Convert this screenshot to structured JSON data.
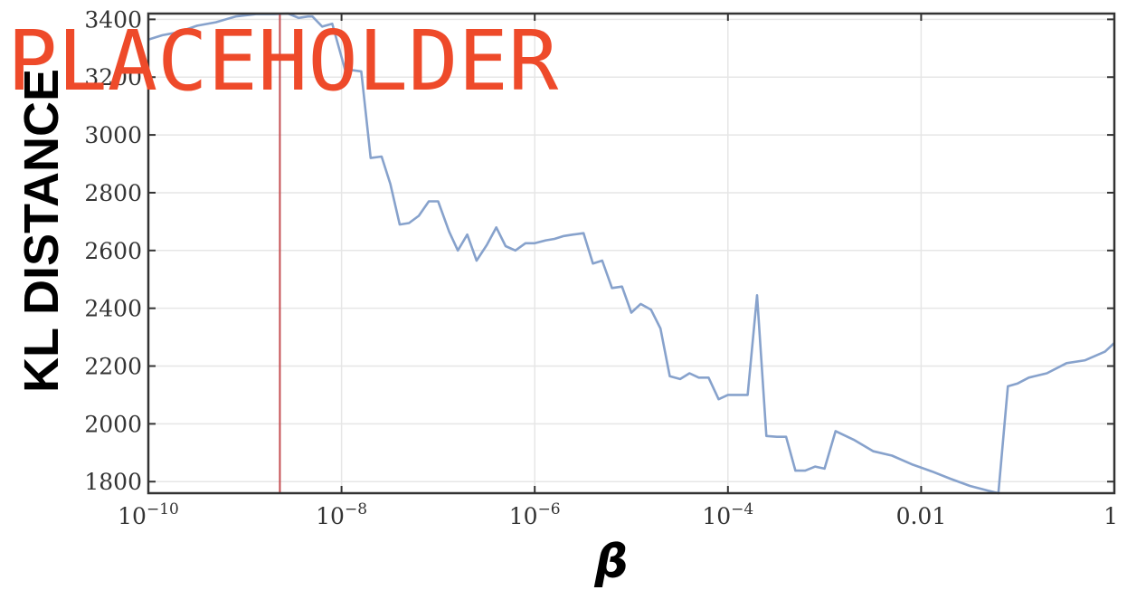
{
  "chart_data": {
    "type": "line",
    "title": "",
    "xlabel": "β",
    "ylabel": "KL DISTANCE",
    "xscale": "log",
    "xlim": [
      1e-10,
      1
    ],
    "ylim": [
      1760,
      3420
    ],
    "grid": true,
    "x_ticks": [
      {
        "value": 1e-10,
        "base": "10",
        "exp": "−10"
      },
      {
        "value": 1e-08,
        "base": "10",
        "exp": "−8"
      },
      {
        "value": 1e-06,
        "base": "10",
        "exp": "−6"
      },
      {
        "value": 0.0001,
        "base": "10",
        "exp": "−4"
      },
      {
        "value": 0.01,
        "base": "0.01",
        "exp": ""
      },
      {
        "value": 1,
        "base": "1",
        "exp": ""
      }
    ],
    "y_ticks": [
      1800,
      2000,
      2200,
      2400,
      2600,
      2800,
      3000,
      3200,
      3400
    ],
    "y_tick_labels": [
      "1800",
      "2000",
      "2200",
      "2400",
      "2600",
      "2800",
      "3000",
      "3200",
      "3400"
    ],
    "vline": {
      "x": 2.3e-09,
      "color": "#c44e52"
    },
    "series": [
      {
        "color": "#87a2cc",
        "x": [
          1e-10,
          1.4e-10,
          2e-10,
          3.2e-10,
          5e-10,
          8e-10,
          1.3e-09,
          2e-09,
          2.8e-09,
          3.6e-09,
          4.5e-09,
          5e-09,
          6.3e-09,
          8e-09,
          1.1e-08,
          1.25e-08,
          1.6e-08,
          2e-08,
          2.6e-08,
          3.2e-08,
          4e-08,
          5e-08,
          6.3e-08,
          8e-08,
          1e-07,
          1.3e-07,
          1.6e-07,
          2e-07,
          2.5e-07,
          3.2e-07,
          4e-07,
          5e-07,
          6.3e-07,
          8e-07,
          1e-06,
          1.3e-06,
          1.6e-06,
          2e-06,
          2.5e-06,
          3.2e-06,
          4e-06,
          5e-06,
          6.3e-06,
          8e-06,
          1e-05,
          1.25e-05,
          1.6e-05,
          2e-05,
          2.5e-05,
          3.2e-05,
          4e-05,
          5e-05,
          6.3e-05,
          8e-05,
          0.0001,
          0.00013,
          0.00016,
          0.0002,
          0.00025,
          0.00032,
          0.0004,
          0.0005,
          0.00063,
          0.0008,
          0.001,
          0.0013,
          0.002,
          0.0032,
          0.005,
          0.008,
          0.013,
          0.02,
          0.032,
          0.05,
          0.063,
          0.079,
          0.1,
          0.13,
          0.2,
          0.32,
          0.5,
          0.8,
          1
        ],
        "y": [
          3330,
          3345,
          3355,
          3378,
          3390,
          3410,
          3418,
          3418,
          3420,
          3405,
          3410,
          3410,
          3375,
          3385,
          3220,
          3225,
          3220,
          2920,
          2925,
          2830,
          2690,
          2695,
          2720,
          2770,
          2770,
          2665,
          2600,
          2655,
          2565,
          2620,
          2680,
          2615,
          2600,
          2625,
          2625,
          2635,
          2640,
          2650,
          2655,
          2660,
          2555,
          2565,
          2470,
          2475,
          2385,
          2415,
          2395,
          2330,
          2165,
          2155,
          2175,
          2160,
          2160,
          2085,
          2100,
          2100,
          2100,
          2445,
          1958,
          1955,
          1955,
          1838,
          1838,
          1852,
          1845,
          1975,
          1945,
          1905,
          1890,
          1860,
          1835,
          1810,
          1785,
          1768,
          1760,
          2130,
          2140,
          2160,
          2175,
          2210,
          2220,
          2250,
          2280
        ]
      }
    ]
  },
  "overlay_text": "PLACEHOLDER"
}
